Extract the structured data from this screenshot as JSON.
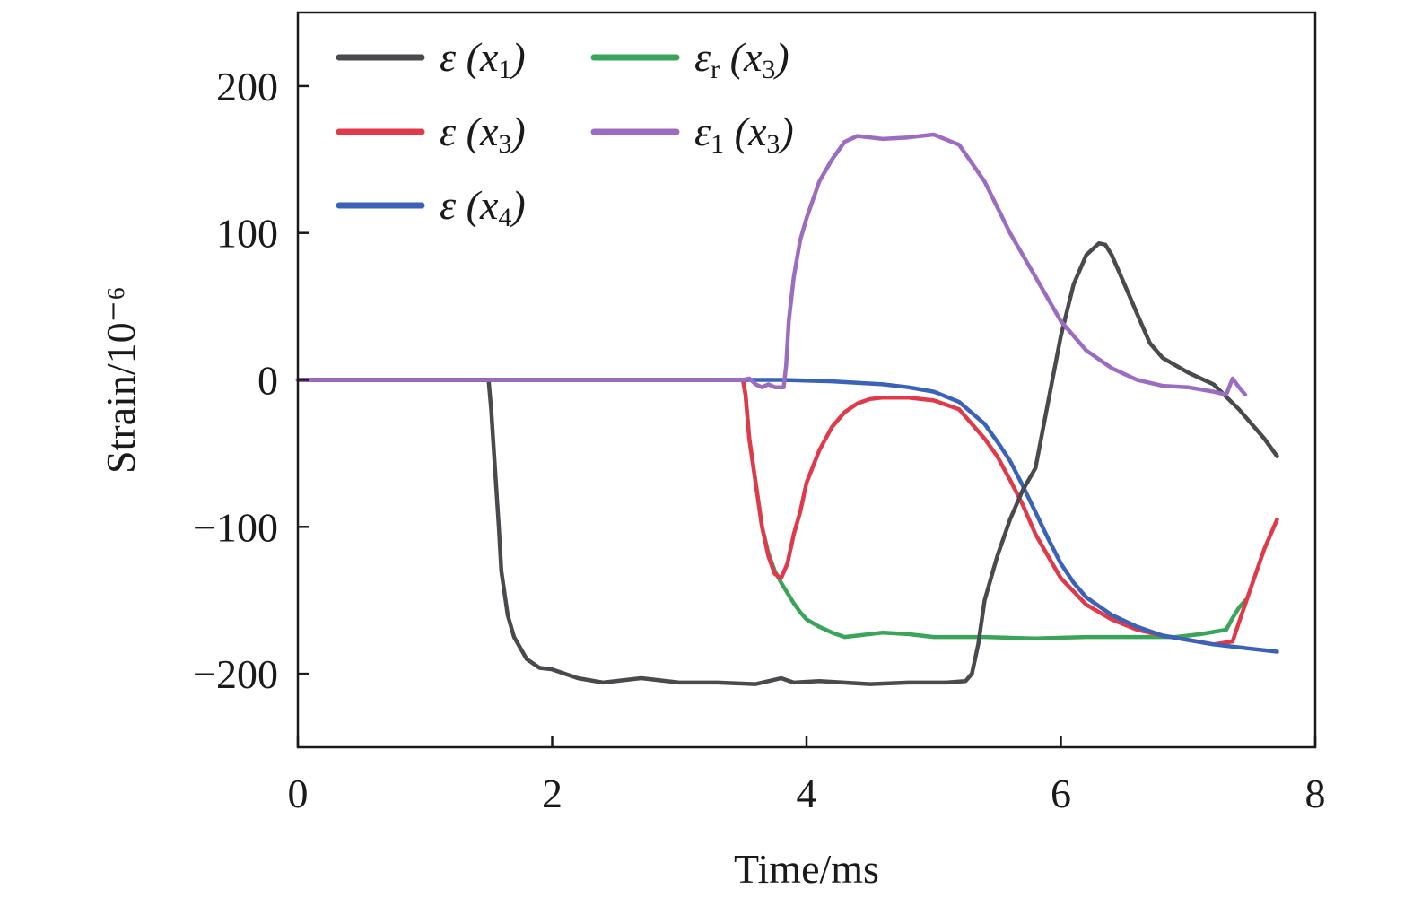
{
  "chart_data": {
    "type": "line",
    "xlabel": "Time/ms",
    "ylabel": "Strain/10⁻⁶",
    "xlim": [
      0,
      8
    ],
    "ylim": [
      -250,
      250
    ],
    "xticks": [
      0,
      2,
      4,
      6,
      8
    ],
    "yticks": [
      200,
      100,
      0,
      -100,
      -200
    ],
    "xtick_labels": [
      "0",
      "2",
      "4",
      "6",
      "8"
    ],
    "ytick_labels": [
      "200",
      "100",
      "0",
      "−100",
      "−200"
    ],
    "grid": false,
    "legend_position": "top-left",
    "series": [
      {
        "name": "ε (x1)",
        "label_main": "ε (x",
        "label_sub": "1",
        "label_end": ")",
        "color": "#4a4a4e",
        "x": [
          0,
          1.5,
          1.52,
          1.55,
          1.58,
          1.6,
          1.65,
          1.7,
          1.8,
          1.9,
          2.0,
          2.2,
          2.4,
          2.7,
          3.0,
          3.3,
          3.6,
          3.75,
          3.8,
          3.9,
          4.1,
          4.5,
          4.8,
          5.1,
          5.25,
          5.3,
          5.35,
          5.4,
          5.5,
          5.6,
          5.7,
          5.8,
          5.9,
          6.0,
          6.1,
          6.2,
          6.3,
          6.35,
          6.4,
          6.5,
          6.6,
          6.7,
          6.8,
          7.0,
          7.2,
          7.4,
          7.6,
          7.7
        ],
        "y": [
          0,
          0,
          -20,
          -60,
          -100,
          -130,
          -160,
          -175,
          -190,
          -196,
          -197,
          -203,
          -206,
          -203,
          -206,
          -206,
          -207,
          -204,
          -203,
          -206,
          -205,
          -207,
          -206,
          -206,
          -205,
          -200,
          -180,
          -150,
          -120,
          -95,
          -75,
          -60,
          -15,
          30,
          65,
          85,
          93,
          92,
          85,
          65,
          45,
          25,
          15,
          5,
          -3,
          -20,
          -40,
          -52
        ]
      },
      {
        "name": "ε (x3)",
        "label_main": "ε (x",
        "label_sub": "3",
        "label_end": ")",
        "color": "#e03a4a",
        "x": [
          0,
          3.5,
          3.52,
          3.55,
          3.6,
          3.65,
          3.7,
          3.75,
          3.8,
          3.85,
          3.9,
          3.95,
          4.0,
          4.1,
          4.2,
          4.3,
          4.4,
          4.5,
          4.6,
          4.8,
          5.0,
          5.2,
          5.4,
          5.5,
          5.6,
          5.7,
          5.8,
          5.9,
          6.0,
          6.2,
          6.4,
          6.6,
          6.8,
          7.0,
          7.2,
          7.35,
          7.4,
          7.5,
          7.6,
          7.7
        ],
        "y": [
          0,
          0,
          -10,
          -40,
          -70,
          -100,
          -120,
          -132,
          -135,
          -125,
          -105,
          -90,
          -70,
          -48,
          -32,
          -22,
          -16,
          -13,
          -12,
          -12,
          -14,
          -20,
          -40,
          -52,
          -68,
          -85,
          -105,
          -120,
          -135,
          -153,
          -163,
          -170,
          -174,
          -177,
          -180,
          -178,
          -165,
          -140,
          -115,
          -95
        ]
      },
      {
        "name": "ε (x4)",
        "label_main": "ε (x",
        "label_sub": "4",
        "label_end": ")",
        "color": "#3a62b8",
        "x": [
          0,
          3.8,
          4.2,
          4.6,
          4.8,
          5.0,
          5.2,
          5.4,
          5.5,
          5.6,
          5.7,
          5.8,
          5.9,
          6.0,
          6.1,
          6.2,
          6.4,
          6.6,
          6.8,
          7.0,
          7.2,
          7.4,
          7.6,
          7.7
        ],
        "y": [
          0,
          0,
          -1,
          -3,
          -5,
          -8,
          -15,
          -30,
          -42,
          -55,
          -72,
          -90,
          -108,
          -125,
          -138,
          -148,
          -160,
          -168,
          -174,
          -177,
          -180,
          -182,
          -184,
          -185
        ]
      },
      {
        "name": "εr (x3)",
        "label_main": "ε",
        "label_sub": "r",
        "label_end": " (x",
        "label_sub2": "3",
        "label_end2": ")",
        "color": "#3aa55a",
        "x": [
          0,
          3.5,
          3.52,
          3.55,
          3.6,
          3.65,
          3.7,
          3.75,
          3.8,
          3.85,
          3.9,
          3.95,
          4.0,
          4.1,
          4.2,
          4.3,
          4.4,
          4.6,
          4.8,
          5.0,
          5.4,
          5.8,
          6.2,
          6.6,
          6.9,
          7.1,
          7.3,
          7.35,
          7.4,
          7.45
        ],
        "y": [
          0,
          0,
          -10,
          -40,
          -70,
          -100,
          -118,
          -130,
          -138,
          -145,
          -152,
          -158,
          -163,
          -168,
          -172,
          -175,
          -174,
          -172,
          -173,
          -175,
          -175,
          -176,
          -175,
          -175,
          -175,
          -173,
          -170,
          -162,
          -155,
          -150
        ]
      },
      {
        "name": "ε1 (x3)",
        "label_main": "ε",
        "label_sub": "1",
        "label_end": " (x",
        "label_sub2": "3",
        "label_end2": ")",
        "color": "#9b6cc0",
        "x": [
          0,
          3.5,
          3.55,
          3.6,
          3.65,
          3.7,
          3.75,
          3.82,
          3.84,
          3.86,
          3.9,
          3.95,
          4.0,
          4.1,
          4.2,
          4.3,
          4.4,
          4.5,
          4.6,
          4.8,
          5.0,
          5.2,
          5.4,
          5.6,
          5.8,
          6.0,
          6.2,
          6.4,
          6.6,
          6.8,
          7.0,
          7.2,
          7.3,
          7.35,
          7.4,
          7.45
        ],
        "y": [
          0,
          0,
          1,
          -3,
          -5,
          -3,
          -5,
          -5,
          10,
          40,
          70,
          95,
          110,
          135,
          150,
          162,
          166,
          165,
          164,
          165,
          167,
          160,
          135,
          100,
          70,
          40,
          20,
          8,
          0,
          -4,
          -5,
          -8,
          -10,
          1,
          -5,
          -10
        ]
      }
    ]
  }
}
